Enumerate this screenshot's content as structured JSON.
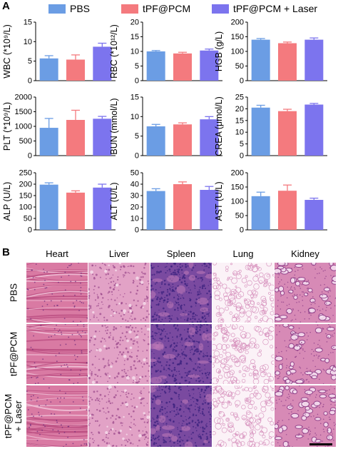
{
  "panel_a_label": "A",
  "panel_b_label": "B",
  "legend": [
    {
      "name": "PBS",
      "color": "#6b9de4"
    },
    {
      "name": "tPF@PCM",
      "color": "#f47a7e"
    },
    {
      "name": "tPF@PCM + Laser",
      "color": "#7c74ee"
    }
  ],
  "chart_data": [
    {
      "type": "bar",
      "ylabel": "WBC (*10⁹/L)",
      "yticks": [
        0,
        5,
        10,
        15
      ],
      "ylim": [
        0,
        15
      ],
      "categories": [
        "PBS",
        "tPF@PCM",
        "tPF@PCM + Laser"
      ],
      "values": [
        5.7,
        5.4,
        8.7
      ],
      "errors": [
        0.7,
        1.2,
        0.9
      ]
    },
    {
      "type": "bar",
      "ylabel": "RBC (*10¹²/L)",
      "yticks": [
        0,
        5,
        10,
        15,
        20
      ],
      "ylim": [
        0,
        20
      ],
      "categories": [
        "PBS",
        "tPF@PCM",
        "tPF@PCM + Laser"
      ],
      "values": [
        10.0,
        9.3,
        10.3
      ],
      "errors": [
        0.3,
        0.4,
        0.5
      ]
    },
    {
      "type": "bar",
      "ylabel": "HGB (g/L)",
      "yticks": [
        0,
        50,
        100,
        150,
        200
      ],
      "ylim": [
        0,
        200
      ],
      "categories": [
        "PBS",
        "tPF@PCM",
        "tPF@PCM + Laser"
      ],
      "values": [
        140,
        128,
        140
      ],
      "errors": [
        4,
        4,
        6
      ]
    },
    {
      "type": "bar",
      "ylabel": "PLT (*10⁹/L)",
      "yticks": [
        0,
        500,
        1000,
        1500,
        2000
      ],
      "ylim": [
        0,
        2000
      ],
      "categories": [
        "PBS",
        "tPF@PCM",
        "tPF@PCM + Laser"
      ],
      "values": [
        950,
        1220,
        1260
      ],
      "errors": [
        320,
        330,
        80
      ]
    },
    {
      "type": "bar",
      "ylabel": "BUN (mmol/L)",
      "yticks": [
        0,
        5,
        10,
        15
      ],
      "ylim": [
        0,
        15
      ],
      "categories": [
        "PBS",
        "tPF@PCM",
        "tPF@PCM + Laser"
      ],
      "values": [
        7.5,
        8.0,
        9.3
      ],
      "errors": [
        0.5,
        0.4,
        0.7
      ]
    },
    {
      "type": "bar",
      "ylabel": "CREA (μmol/L)",
      "yticks": [
        0,
        5,
        10,
        15,
        20,
        25
      ],
      "ylim": [
        0,
        25
      ],
      "categories": [
        "PBS",
        "tPF@PCM",
        "tPF@PCM + Laser"
      ],
      "values": [
        20.5,
        19.0,
        21.8
      ],
      "errors": [
        1.0,
        0.8,
        0.5
      ]
    },
    {
      "type": "bar",
      "ylabel": "ALP (U/L)",
      "yticks": [
        0,
        50,
        100,
        150,
        200,
        250
      ],
      "ylim": [
        0,
        250
      ],
      "categories": [
        "PBS",
        "tPF@PCM",
        "tPF@PCM + Laser"
      ],
      "values": [
        198,
        163,
        185
      ],
      "errors": [
        8,
        8,
        15
      ]
    },
    {
      "type": "bar",
      "ylabel": "ALT (U/L)",
      "yticks": [
        0,
        10,
        20,
        30,
        40,
        50
      ],
      "ylim": [
        0,
        50
      ],
      "categories": [
        "PBS",
        "tPF@PCM",
        "tPF@PCM + Laser"
      ],
      "values": [
        34,
        40,
        35
      ],
      "errors": [
        2,
        2,
        3
      ]
    },
    {
      "type": "bar",
      "ylabel": "AST (U/L)",
      "yticks": [
        0,
        50,
        100,
        150,
        200
      ],
      "ylim": [
        0,
        200
      ],
      "categories": [
        "PBS",
        "tPF@PCM",
        "tPF@PCM + Laser"
      ],
      "values": [
        118,
        137,
        105
      ],
      "errors": [
        14,
        20,
        6
      ]
    }
  ],
  "histology": {
    "columns": [
      "Heart",
      "Liver",
      "Spleen",
      "Lung",
      "Kidney"
    ],
    "rows": [
      "PBS",
      "tPF@PCM",
      "tPF@PCM\n+ Laser"
    ],
    "tissue_colors": {
      "Heart": {
        "base": "#d97aa3",
        "accent": "#b94c80",
        "light": "#f2c8dc"
      },
      "Liver": {
        "base": "#e2a2c6",
        "accent": "#9d4c8e",
        "light": "#f4d8e8"
      },
      "Spleen": {
        "base": "#7a4aa0",
        "accent": "#3e2380",
        "light": "#c07ab8"
      },
      "Lung": {
        "base": "#fbf2f7",
        "accent": "#d38ab8",
        "light": "#ffffff"
      },
      "Kidney": {
        "base": "#d78ab6",
        "accent": "#8e3e88",
        "light": "#f6dff0"
      }
    }
  }
}
